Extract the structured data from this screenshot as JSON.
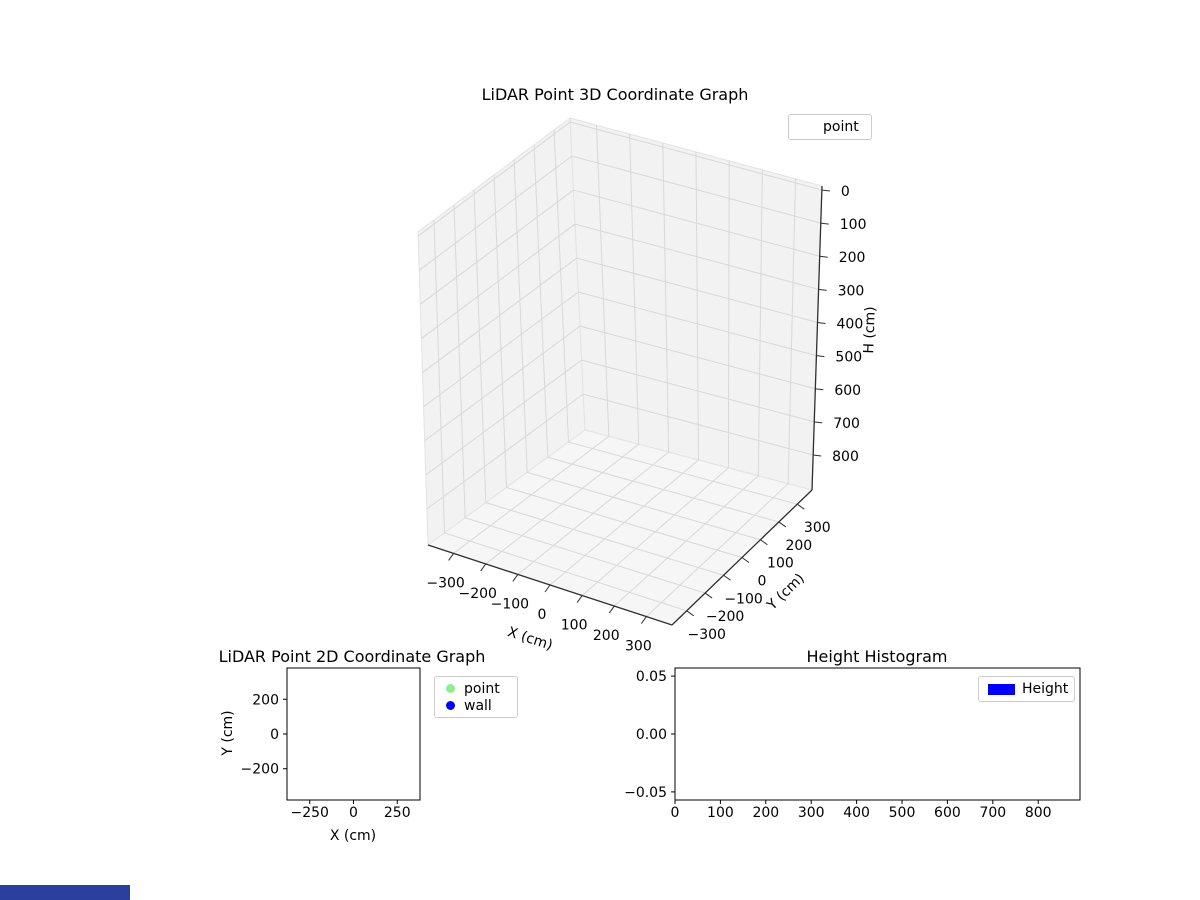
{
  "figure": {
    "background": "#ffffff"
  },
  "taskbar_fragment": {
    "color": "#2b3f9e"
  },
  "chart_data": [
    {
      "id": "lidar-3d",
      "type": "scatter",
      "projection": "3d",
      "title": "LiDAR Point 3D Coordinate Graph",
      "xlabel": "X (cm)",
      "ylabel": "Y (cm)",
      "zlabel": "H (cm)",
      "xticks": [
        "−300",
        "−200",
        "−100",
        "0",
        "100",
        "200",
        "300"
      ],
      "yticks": [
        "−300",
        "−200",
        "−100",
        "0",
        "100",
        "200",
        "300"
      ],
      "zticks": [
        "0",
        "100",
        "200",
        "300",
        "400",
        "500",
        "600",
        "700",
        "800"
      ],
      "xlim": [
        -380,
        380
      ],
      "ylim": [
        -380,
        380
      ],
      "zlim": [
        0,
        880
      ],
      "zaxis_inverted": true,
      "grid": true,
      "pane_color": "#f2f2f2",
      "floor_color": "#f6f6f6",
      "grid_color": "#d8d8d8",
      "legend": {
        "position": "upper right",
        "entries": [
          {
            "label": "point",
            "marker": "none"
          }
        ]
      },
      "series": [
        {
          "name": "point",
          "points": []
        }
      ]
    },
    {
      "id": "lidar-2d",
      "type": "scatter",
      "title": "LiDAR Point 2D Coordinate Graph",
      "xlabel": "X (cm)",
      "ylabel": "Y (cm)",
      "xticks": [
        "−250",
        "0",
        "250"
      ],
      "yticks": [
        "200",
        "0",
        "−200"
      ],
      "xlim": [
        -380,
        380
      ],
      "ylim": [
        -380,
        380
      ],
      "grid": false,
      "legend": {
        "position": "outside upper right",
        "entries": [
          {
            "label": "point",
            "marker": "circle",
            "color": "#90ee90"
          },
          {
            "label": "wall",
            "marker": "circle",
            "color": "#0000ff"
          }
        ]
      },
      "series": [
        {
          "name": "point",
          "points": []
        },
        {
          "name": "wall",
          "points": []
        }
      ]
    },
    {
      "id": "height-histogram",
      "type": "bar",
      "title": "Height Histogram",
      "xticks": [
        "0",
        "100",
        "200",
        "300",
        "400",
        "500",
        "600",
        "700",
        "800"
      ],
      "yticks": [
        "0.05",
        "0.00",
        "−0.05"
      ],
      "xlim": [
        0,
        892
      ],
      "ylim": [
        -0.057,
        0.057
      ],
      "grid": false,
      "legend": {
        "position": "upper right",
        "entries": [
          {
            "label": "Height",
            "marker": "rect",
            "color": "#0000ff"
          }
        ]
      },
      "categories": [],
      "values": []
    }
  ]
}
